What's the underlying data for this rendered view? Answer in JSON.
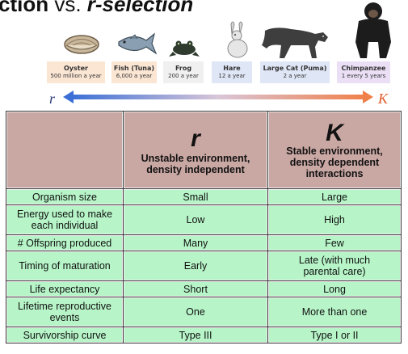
{
  "title": {
    "part1": "ction",
    "vs": " vs. ",
    "part2": "r-selection"
  },
  "colors": {
    "header_bg": "#c9a7a3",
    "row_bg": "#b7f5c8",
    "arrow_start": "#3b6fd6",
    "arrow_end": "#f0804a"
  },
  "scale": {
    "left_label": "r",
    "right_label": "K",
    "animals": [
      {
        "icon": "clam-icon",
        "name": "Oyster",
        "rate": "500 million a year",
        "color": "#fbe6d4"
      },
      {
        "icon": "fish-icon",
        "name": "Fish (Tuna)",
        "rate": "6,000 a year",
        "color": "#fbe6d4"
      },
      {
        "icon": "frog-icon",
        "name": "Frog",
        "rate": "200 a year",
        "color": "#f0f0f0"
      },
      {
        "icon": "rabbit-icon",
        "name": "Hare",
        "rate": "12 a year",
        "color": "#dfe6f5"
      },
      {
        "icon": "puma-icon",
        "name": "Large Cat (Puma)",
        "rate": "2 a year",
        "color": "#dfe6f5"
      },
      {
        "icon": "chimpanzee-icon",
        "name": "Chimpanzee",
        "rate": "1 every 5 years",
        "color": "#eadff5"
      }
    ]
  },
  "table": {
    "r_header": {
      "letter": "r",
      "desc": "Unstable environment, density independent"
    },
    "k_header": {
      "letter": "K",
      "desc": "Stable environment, density dependent interactions"
    },
    "rows": [
      {
        "label": "Organism size",
        "r": "Small",
        "k": "Large"
      },
      {
        "label": "Energy used to make each individual",
        "r": "Low",
        "k": "High"
      },
      {
        "label": "# Offspring produced",
        "r": "Many",
        "k": "Few"
      },
      {
        "label": "Timing of maturation",
        "r": "Early",
        "k": "Late (with much parental care)"
      },
      {
        "label": "Life expectancy",
        "r": "Short",
        "k": "Long"
      },
      {
        "label": "Lifetime reproductive events",
        "r": "One",
        "k": "More than one"
      },
      {
        "label": "Survivorship curve",
        "r": "Type III",
        "k": "Type I or II"
      }
    ]
  }
}
